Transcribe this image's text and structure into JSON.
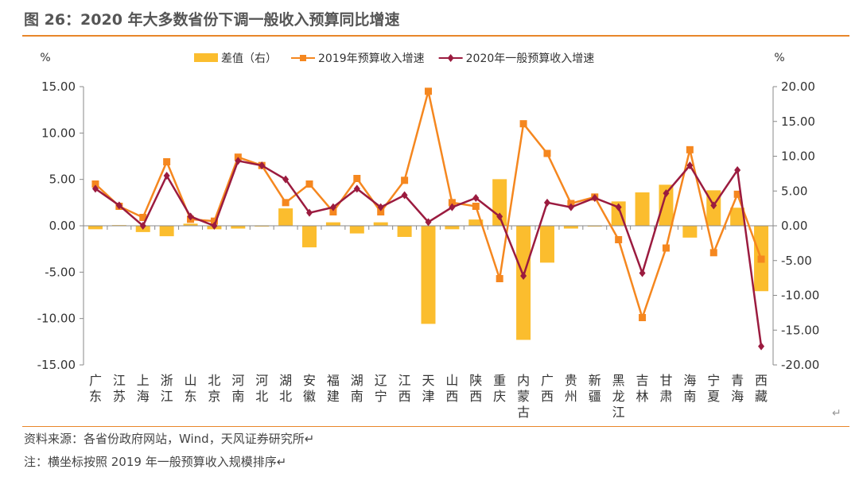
{
  "title": "图 26：2020 年大多数省份下调一般收入预算同比增速",
  "title_mark": "↵",
  "source": "资料来源：各省份政府网站，Wind，天风证券研究所↵",
  "note": "注：横坐标按照 2019 年一般预算收入规模排序↵",
  "end_mark": "↵",
  "chart_data": {
    "type": "bar+line",
    "left_unit": "%",
    "right_unit": "%",
    "left_ylim": [
      -15,
      15
    ],
    "right_ylim": [
      -20,
      20
    ],
    "left_ticks": [
      "15.00",
      "10.00",
      "5.00",
      "0.00",
      "-5.00",
      "-10.00",
      "-15.00"
    ],
    "right_ticks": [
      "20.00",
      "15.00",
      "10.00",
      "5.00",
      "0.00",
      "-5.00",
      "-10.00",
      "-15.00",
      "-20.00"
    ],
    "legend_placement": "top",
    "grid": false,
    "categories": [
      "广东",
      "江苏",
      "上海",
      "浙江",
      "山东",
      "北京",
      "河南",
      "河北",
      "湖北",
      "安徽",
      "福建",
      "湖南",
      "辽宁",
      "江西",
      "天津",
      "山西",
      "陕西",
      "重庆",
      "内蒙古",
      "广西",
      "贵州",
      "新疆",
      "黑龙江",
      "吉林",
      "甘肃",
      "海南",
      "宁夏",
      "青海",
      "西藏"
    ],
    "series": [
      {
        "name": "差值（右）",
        "type": "bar",
        "axis": "right",
        "color": "#fbbd2e",
        "values": [
          -0.5,
          0.1,
          -0.9,
          -1.5,
          0.3,
          -0.5,
          -0.4,
          0.0,
          2.5,
          -3.1,
          0.5,
          -1.1,
          0.5,
          -1.6,
          -14.1,
          -0.5,
          0.9,
          6.7,
          -16.4,
          -5.3,
          -0.4,
          -0.1,
          3.5,
          4.8,
          5.9,
          -1.7,
          5.1,
          2.6,
          -9.4
        ]
      },
      {
        "name": "2019年预算收入增速",
        "type": "line",
        "axis": "left",
        "color": "#f5871f",
        "marker": "square",
        "values": [
          4.5,
          2.1,
          0.9,
          6.9,
          0.7,
          0.5,
          7.4,
          6.5,
          2.5,
          4.5,
          1.5,
          5.1,
          1.5,
          4.9,
          14.5,
          2.5,
          2.1,
          -5.7,
          11.0,
          7.8,
          2.4,
          3.1,
          -1.5,
          -9.9,
          -2.4,
          8.2,
          -2.9,
          3.4,
          -3.6
        ]
      },
      {
        "name": "2020年一般预算收入增速",
        "type": "line",
        "axis": "left",
        "color": "#9b1b3f",
        "marker": "diamond",
        "values": [
          4.0,
          2.2,
          0.0,
          5.4,
          1.0,
          0.0,
          7.0,
          6.5,
          5.0,
          1.4,
          2.0,
          4.0,
          2.0,
          3.3,
          0.4,
          2.0,
          3.0,
          1.0,
          -5.4,
          2.5,
          2.0,
          3.0,
          2.0,
          -5.1,
          3.5,
          6.5,
          2.2,
          6.0,
          -13.0
        ]
      }
    ]
  }
}
